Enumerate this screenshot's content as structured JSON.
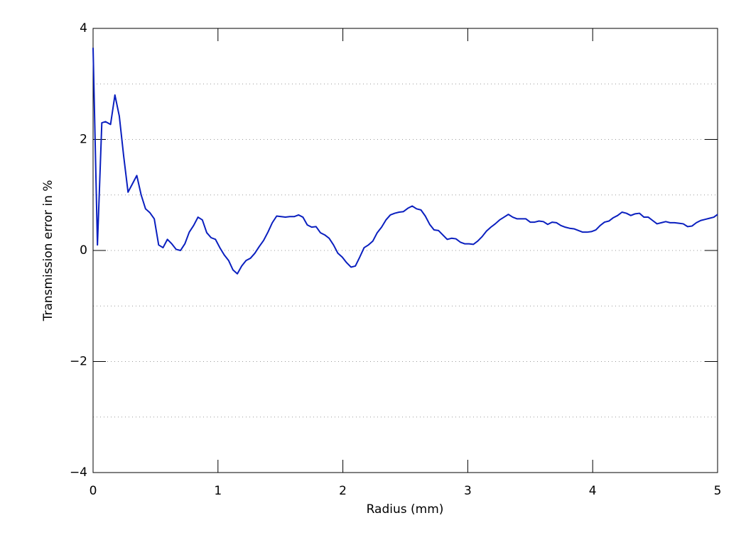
{
  "chart_data": {
    "type": "line",
    "xlabel": "Radius (mm)",
    "ylabel": "Transmission error in %",
    "x": [
      0,
      0.035,
      0.07,
      0.1,
      0.14,
      0.175,
      0.21,
      0.245,
      0.28,
      0.315,
      0.35,
      0.385,
      0.42,
      0.455,
      0.49,
      0.525,
      0.56,
      0.595,
      0.63,
      0.665,
      0.7,
      0.735,
      0.77,
      0.805,
      0.84,
      0.875,
      0.91,
      0.945,
      0.98,
      1.015,
      1.05,
      1.085,
      1.12,
      1.155,
      1.19,
      1.225,
      1.26,
      1.295,
      1.33,
      1.365,
      1.4,
      1.435,
      1.47,
      1.505,
      1.54,
      1.575,
      1.61,
      1.645,
      1.68,
      1.715,
      1.75,
      1.785,
      1.82,
      1.855,
      1.89,
      1.925,
      1.96,
      1.995,
      2.03,
      2.065,
      2.1,
      2.135,
      2.17,
      2.205,
      2.24,
      2.275,
      2.31,
      2.345,
      2.38,
      2.415,
      2.45,
      2.485,
      2.52,
      2.555,
      2.59,
      2.625,
      2.66,
      2.695,
      2.73,
      2.765,
      2.8,
      2.835,
      2.87,
      2.905,
      2.94,
      2.975,
      3.01,
      3.045,
      3.08,
      3.115,
      3.15,
      3.185,
      3.22,
      3.255,
      3.29,
      3.325,
      3.36,
      3.395,
      3.43,
      3.465,
      3.5,
      3.535,
      3.57,
      3.605,
      3.64,
      3.675,
      3.71,
      3.745,
      3.78,
      3.815,
      3.85,
      3.885,
      3.92,
      3.955,
      3.99,
      4.025,
      4.06,
      4.095,
      4.13,
      4.165,
      4.2,
      4.235,
      4.27,
      4.305,
      4.34,
      4.375,
      4.41,
      4.445,
      4.48,
      4.515,
      4.55,
      4.585,
      4.62,
      4.655,
      4.69,
      4.725,
      4.76,
      4.795,
      4.83,
      4.865,
      4.9,
      4.935,
      4.97,
      5.0
    ],
    "series": [
      {
        "color": "#0a1fbf",
        "values": [
          3.65,
          0.1,
          2.3,
          2.32,
          2.27,
          2.8,
          2.42,
          1.7,
          1.05,
          1.2,
          1.35,
          1.0,
          0.75,
          0.68,
          0.57,
          0.1,
          0.05,
          0.2,
          0.12,
          0.02,
          0.0,
          0.12,
          0.33,
          0.45,
          0.6,
          0.55,
          0.32,
          0.23,
          0.2,
          0.05,
          -0.08,
          -0.18,
          -0.35,
          -0.42,
          -0.28,
          -0.18,
          -0.14,
          -0.05,
          0.07,
          0.18,
          0.33,
          0.5,
          0.62,
          0.61,
          0.6,
          0.61,
          0.61,
          0.64,
          0.6,
          0.46,
          0.42,
          0.43,
          0.32,
          0.28,
          0.22,
          0.1,
          -0.05,
          -0.12,
          -0.22,
          -0.3,
          -0.28,
          -0.12,
          0.05,
          0.1,
          0.17,
          0.32,
          0.42,
          0.55,
          0.64,
          0.67,
          0.69,
          0.7,
          0.76,
          0.8,
          0.75,
          0.73,
          0.62,
          0.47,
          0.37,
          0.36,
          0.28,
          0.2,
          0.22,
          0.21,
          0.15,
          0.12,
          0.12,
          0.11,
          0.17,
          0.25,
          0.35,
          0.42,
          0.48,
          0.55,
          0.6,
          0.65,
          0.6,
          0.57,
          0.57,
          0.57,
          0.51,
          0.51,
          0.53,
          0.52,
          0.47,
          0.51,
          0.5,
          0.45,
          0.42,
          0.4,
          0.39,
          0.36,
          0.33,
          0.33,
          0.34,
          0.37,
          0.45,
          0.51,
          0.53,
          0.59,
          0.63,
          0.69,
          0.67,
          0.63,
          0.66,
          0.67,
          0.6,
          0.6,
          0.54,
          0.48,
          0.5,
          0.52,
          0.5,
          0.5,
          0.49,
          0.48,
          0.43,
          0.44,
          0.5,
          0.54,
          0.56,
          0.58,
          0.6,
          0.65
        ]
      }
    ],
    "xlim": [
      0,
      5
    ],
    "xticks": [
      0,
      1,
      2,
      3,
      4,
      5
    ],
    "ylim": [
      -4,
      4
    ],
    "yticks": [
      {
        "value": -4,
        "label": "−4"
      },
      {
        "value": -2,
        "label": "−2"
      },
      0,
      2,
      4
    ],
    "grid_lines": [
      -3,
      -2,
      -1,
      0,
      1,
      2,
      3
    ]
  }
}
